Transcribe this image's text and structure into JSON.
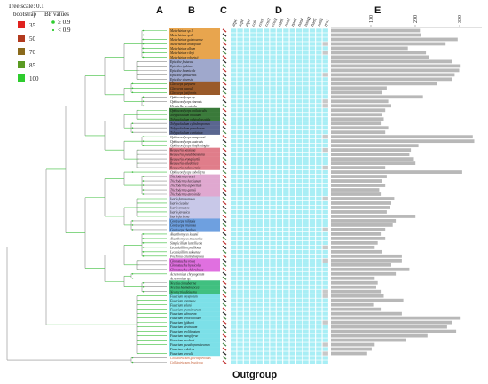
{
  "figure": {
    "panel_letters": [
      "A",
      "B",
      "C",
      "D",
      "E"
    ],
    "outgroup_label": "Outgroup",
    "tree_scale_label": "Tree scale: 0.1",
    "legend": {
      "bootstrap_title": "bootstrap",
      "bp_title": "BP values",
      "bootstrap_items": [
        {
          "label": "35",
          "color": "#e0221f"
        },
        {
          "label": "50",
          "color": "#b23a1e"
        },
        {
          "label": "70",
          "color": "#8a6a1c"
        },
        {
          "label": "85",
          "color": "#5a9a22"
        },
        {
          "label": "100",
          "color": "#2ecc2e"
        }
      ],
      "bp_items": [
        {
          "label": "≥ 0.9",
          "color": "#2ecc2e"
        },
        {
          "label": "< 0.9",
          "color": "#2ecc2e"
        }
      ]
    },
    "column_headers": [
      "atp6",
      "atp8",
      "atp9",
      "cob",
      "cox1",
      "cox2",
      "cox3",
      "nad1",
      "nad2",
      "nad3",
      "nad4",
      "nad4L",
      "nad5",
      "nad6",
      "rps3"
    ],
    "scale_ticks": [
      "100",
      "200",
      "300"
    ],
    "colors": {
      "heatmap": "#a8eef5",
      "bar": "#b8b8b8",
      "tree": "#8c8c8c",
      "branch_green": "#3fbf3f",
      "outgroup_text": "#c0552a"
    },
    "taxa": [
      {
        "name": "Metarhizium sp.1",
        "bg": "#e8a54e",
        "bar": 0.59
      },
      {
        "name": "Metarhizium sp.2",
        "bg": "#e8a54e",
        "bar": 0.6
      },
      {
        "name": "Metarhizium guizhouense",
        "bg": "#e8a54e",
        "bar": 0.84
      },
      {
        "name": "Metarhizium anisopliae",
        "bg": "#e8a54e",
        "bar": 0.76
      },
      {
        "name": "Metarhizium album",
        "bg": "#e8a54e",
        "bar": 0.51
      },
      {
        "name": "Metarhizium rileyi",
        "bg": "#e8a54e",
        "bar": 0.63
      },
      {
        "name": "Metarhizium robertsii",
        "bg": "#e8a54e",
        "bar": 0.65
      },
      {
        "name": "Epichloe festucae",
        "bg": "#9fa8cc",
        "bar": 0.8
      },
      {
        "name": "Epichloe typhina",
        "bg": "#9fa8cc",
        "bar": 0.86
      },
      {
        "name": "Epichloe bromicola",
        "bg": "#9fa8cc",
        "bar": 0.85
      },
      {
        "name": "Epichloe gansuensis",
        "bg": "#9fa8cc",
        "bar": 0.82
      },
      {
        "name": "Epichloe sinensis",
        "bg": "#9fa8cc",
        "bar": 0.8
      },
      {
        "name": "Claviceps purpurea",
        "bg": "#9a5a2a",
        "bar": 0.7
      },
      {
        "name": "Claviceps paspali",
        "bg": "#9a5a2a",
        "bar": 0.37
      },
      {
        "name": "Claviceps fusiformis",
        "bg": "#9a5a2a",
        "bar": 0.34
      },
      {
        "name": "Ophiocordyceps sp.",
        "bg": "",
        "bar": 0.61
      },
      {
        "name": "Ophiocordyceps sinensis",
        "bg": "",
        "bar": 0.38
      },
      {
        "name": "Hirsutella vermicola",
        "bg": "",
        "bar": 0.4
      },
      {
        "name": "Ophiocordyceps unilateralis",
        "bg": "#3a7a3a",
        "bar": 0.36
      },
      {
        "name": "Tolypocladium inflatum",
        "bg": "#3a7a3a",
        "bar": 0.34
      },
      {
        "name": "Tolypocladium ophioglossoides",
        "bg": "#3a7a3a",
        "bar": 0.35
      },
      {
        "name": "Tolypocladium cylindrosporum",
        "bg": "#5a6690",
        "bar": 0.33
      },
      {
        "name": "Tolypocladium paradoxum",
        "bg": "#5a6690",
        "bar": 0.38
      },
      {
        "name": "Tolypocladium capitatum",
        "bg": "#5a6690",
        "bar": 0.36
      },
      {
        "name": "Ophiocordyceps camponoti",
        "bg": "",
        "bar": 0.94
      },
      {
        "name": "Ophiocordyceps australis",
        "bg": "",
        "bar": 0.95
      },
      {
        "name": "Ophiocordyceps kimflemingiae",
        "bg": "",
        "bar": 0.58
      },
      {
        "name": "Beauveria bassiana",
        "bg": "#e07d8a",
        "bar": 0.53
      },
      {
        "name": "Beauveria pseudobassiana",
        "bg": "#e07d8a",
        "bar": 0.52
      },
      {
        "name": "Beauveria brongniartii",
        "bg": "#e07d8a",
        "bar": 0.55
      },
      {
        "name": "Beauveria caledonica",
        "bg": "#e07d8a",
        "bar": 0.56
      },
      {
        "name": "Beauveria malawiensis",
        "bg": "#e07d8a",
        "bar": 0.36
      },
      {
        "name": "Ophiocordyceps sobolifera",
        "bg": "",
        "bar": 0.87
      },
      {
        "name": "Trichoderma reesei",
        "bg": "#e0a8d0",
        "bar": 0.37
      },
      {
        "name": "Trichoderma harzianum",
        "bg": "#e0a8d0",
        "bar": 0.34
      },
      {
        "name": "Trichoderma asperellum",
        "bg": "#e0a8d0",
        "bar": 0.36
      },
      {
        "name": "Trichoderma gamsii",
        "bg": "#e0a8d0",
        "bar": 0.32
      },
      {
        "name": "Trichoderma atroviride",
        "bg": "#e0a8d0",
        "bar": 0.33
      },
      {
        "name": "Isaria fumosorosea",
        "bg": "#c8c8e8",
        "bar": 0.42
      },
      {
        "name": "Isaria cicadae",
        "bg": "#c8c8e8",
        "bar": 0.4
      },
      {
        "name": "Isaria tenuipes",
        "bg": "#c8c8e8",
        "bar": 0.39
      },
      {
        "name": "Isaria javanica",
        "bg": "#c8c8e8",
        "bar": 0.37
      },
      {
        "name": "Isaria farinosa",
        "bg": "#c8c8e8",
        "bar": 0.56
      },
      {
        "name": "Cordyceps militaris",
        "bg": "#6ea0e0",
        "bar": 0.43
      },
      {
        "name": "Cordyceps pruinosa",
        "bg": "#6ea0e0",
        "bar": 0.41
      },
      {
        "name": "Cordyceps chanhua",
        "bg": "#6ea0e0",
        "bar": 0.36
      },
      {
        "name": "Akanthomyces lecanii",
        "bg": "",
        "bar": 0.33
      },
      {
        "name": "Akanthomyces muscarius",
        "bg": "",
        "bar": 0.36
      },
      {
        "name": "Simplicillium lamellicola",
        "bg": "",
        "bar": 0.31
      },
      {
        "name": "Lecanicillium psalliotae",
        "bg": "",
        "bar": 0.29
      },
      {
        "name": "Lecanicillium saksenae",
        "bg": "",
        "bar": 0.34
      },
      {
        "name": "Pochonia chlamydosporia",
        "bg": "",
        "bar": 0.47
      },
      {
        "name": "Clonostachys rosea",
        "bg": "#e070e0",
        "bar": 0.47
      },
      {
        "name": "Clonostachys byssicola",
        "bg": "#e070e0",
        "bar": 0.4
      },
      {
        "name": "Clonostachys chloroleuca",
        "bg": "#e070e0",
        "bar": 0.52
      },
      {
        "name": "Acremonium chrysogenum",
        "bg": "",
        "bar": 0.43
      },
      {
        "name": "Acremonium sp.",
        "bg": "",
        "bar": 0.29
      },
      {
        "name": "Nectria cinnabarina",
        "bg": "#40c080",
        "bar": 0.31
      },
      {
        "name": "Nectria haematococca",
        "bg": "#40c080",
        "bar": 0.3
      },
      {
        "name": "Neonectria ditissima",
        "bg": "#40c080",
        "bar": 0.33
      },
      {
        "name": "Fusarium oxysporum",
        "bg": "#7ce0e8",
        "bar": 0.35
      },
      {
        "name": "Fusarium commune",
        "bg": "#7ce0e8",
        "bar": 0.48
      },
      {
        "name": "Fusarium solani",
        "bg": "#7ce0e8",
        "bar": 0.28
      },
      {
        "name": "Fusarium graminearum",
        "bg": "#7ce0e8",
        "bar": 0.33
      },
      {
        "name": "Fusarium culmorum",
        "bg": "#7ce0e8",
        "bar": 0.47
      },
      {
        "name": "Fusarium verticillioides",
        "bg": "#7ce0e8",
        "bar": 0.86
      },
      {
        "name": "Fusarium fujikuroi",
        "bg": "#7ce0e8",
        "bar": 0.8
      },
      {
        "name": "Fusarium circinatum",
        "bg": "#7ce0e8",
        "bar": 0.77
      },
      {
        "name": "Fusarium proliferatum",
        "bg": "#7ce0e8",
        "bar": 0.83
      },
      {
        "name": "Fusarium mangiferae",
        "bg": "#7ce0e8",
        "bar": 0.64
      },
      {
        "name": "Fusarium sacchari",
        "bg": "#7ce0e8",
        "bar": 0.5
      },
      {
        "name": "Fusarium pseudograminearum",
        "bg": "#7ce0e8",
        "bar": 0.29
      },
      {
        "name": "Fusarium redolens",
        "bg": "#7ce0e8",
        "bar": 0.27
      },
      {
        "name": "Fusarium cerealis",
        "bg": "#7ce0e8",
        "bar": 0.24
      },
      {
        "name": "Colletotrichum gloeosporioides",
        "bg": "",
        "outgroup": true,
        "bar": 0.0
      },
      {
        "name": "Colletotrichum fructicola",
        "bg": "",
        "outgroup": true,
        "bar": 0.0
      }
    ]
  }
}
